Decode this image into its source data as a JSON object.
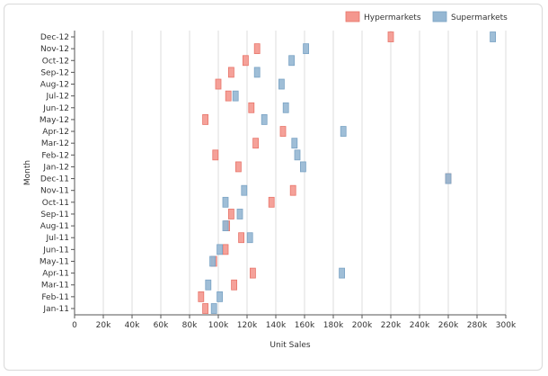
{
  "chart_data": {
    "type": "scatter",
    "orientation": "horizontal",
    "title": "",
    "xlabel": "Unit Sales",
    "ylabel": "Month",
    "xlim": [
      0,
      300000
    ],
    "x_ticks": [
      0,
      20000,
      40000,
      60000,
      80000,
      100000,
      120000,
      140000,
      160000,
      180000,
      200000,
      220000,
      240000,
      260000,
      280000,
      300000
    ],
    "x_tick_labels": [
      "0",
      "20k",
      "40k",
      "60k",
      "80k",
      "100k",
      "120k",
      "140k",
      "160k",
      "180k",
      "200k",
      "220k",
      "240k",
      "260k",
      "280k",
      "300k"
    ],
    "categories": [
      "Jan-11",
      "Feb-11",
      "Mar-11",
      "Apr-11",
      "May-11",
      "Jun-11",
      "Jul-11",
      "Aug-11",
      "Sep-11",
      "Oct-11",
      "Nov-11",
      "Dec-11",
      "Jan-12",
      "Feb-12",
      "Mar-12",
      "Apr-12",
      "May-12",
      "Jun-12",
      "Jul-12",
      "Aug-12",
      "Sep-12",
      "Oct-12",
      "Nov-12",
      "Dec-12"
    ],
    "grid": {
      "vertical": true,
      "horizontal": false
    },
    "legend_position": "top-right",
    "series": [
      {
        "name": "Hypermarkets",
        "color": "#f4978e",
        "stroke": "#e8756a",
        "values": [
          91000,
          88000,
          111000,
          124000,
          97000,
          105000,
          116000,
          106000,
          109000,
          137000,
          152000,
          260000,
          114000,
          98000,
          126000,
          145000,
          91000,
          123000,
          107000,
          100000,
          109000,
          119000,
          127000,
          220000
        ]
      },
      {
        "name": "Supermarkets",
        "color": "#95b7d3",
        "stroke": "#7aa3c4",
        "values": [
          97000,
          101000,
          93000,
          186000,
          96000,
          101000,
          122000,
          105000,
          115000,
          105000,
          118000,
          260000,
          159000,
          155000,
          153000,
          187000,
          132000,
          147000,
          112000,
          144000,
          127000,
          151000,
          161000,
          291000
        ]
      }
    ]
  }
}
